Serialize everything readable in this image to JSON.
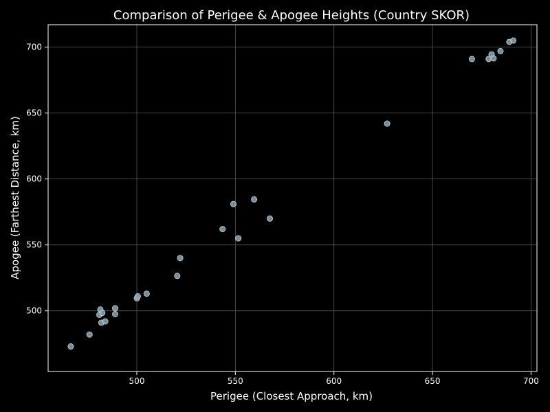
{
  "chart_data": {
    "type": "scatter",
    "title": "Comparison of Perigee & Apogee Heights (Country SKOR)",
    "xlabel": "Perigee (Closest Approach, km)",
    "ylabel": "Apogee (Farthest Distance, km)",
    "xlim": [
      455,
      703
    ],
    "ylim": [
      454,
      717
    ],
    "x_ticks": [
      500,
      550,
      600,
      650,
      700
    ],
    "y_ticks": [
      500,
      550,
      600,
      650,
      700
    ],
    "grid": true,
    "legend": "none",
    "colors": {
      "background": "#000000",
      "plot_background": "#000000",
      "axis": "#ffffff",
      "grid": "#5a5a5a",
      "point_fill": "#8fa6b0",
      "point_stroke": "#c8d6dc",
      "text": "#ffffff"
    },
    "points": [
      {
        "x": 466.5,
        "y": 473
      },
      {
        "x": 476,
        "y": 482
      },
      {
        "x": 481,
        "y": 497
      },
      {
        "x": 481.5,
        "y": 501
      },
      {
        "x": 482.5,
        "y": 498.5
      },
      {
        "x": 482,
        "y": 491
      },
      {
        "x": 484,
        "y": 492
      },
      {
        "x": 489,
        "y": 497.5
      },
      {
        "x": 489,
        "y": 502
      },
      {
        "x": 500,
        "y": 509.5
      },
      {
        "x": 500.5,
        "y": 511
      },
      {
        "x": 505,
        "y": 513
      },
      {
        "x": 520.5,
        "y": 526.5
      },
      {
        "x": 522,
        "y": 540
      },
      {
        "x": 543.5,
        "y": 562
      },
      {
        "x": 549,
        "y": 581
      },
      {
        "x": 551.5,
        "y": 555
      },
      {
        "x": 559.5,
        "y": 584.5
      },
      {
        "x": 567.5,
        "y": 570
      },
      {
        "x": 627,
        "y": 642
      },
      {
        "x": 670,
        "y": 691
      },
      {
        "x": 678.5,
        "y": 691
      },
      {
        "x": 680,
        "y": 694.5
      },
      {
        "x": 681,
        "y": 691.5
      },
      {
        "x": 684.5,
        "y": 697
      },
      {
        "x": 689,
        "y": 704
      },
      {
        "x": 691,
        "y": 705
      }
    ]
  }
}
